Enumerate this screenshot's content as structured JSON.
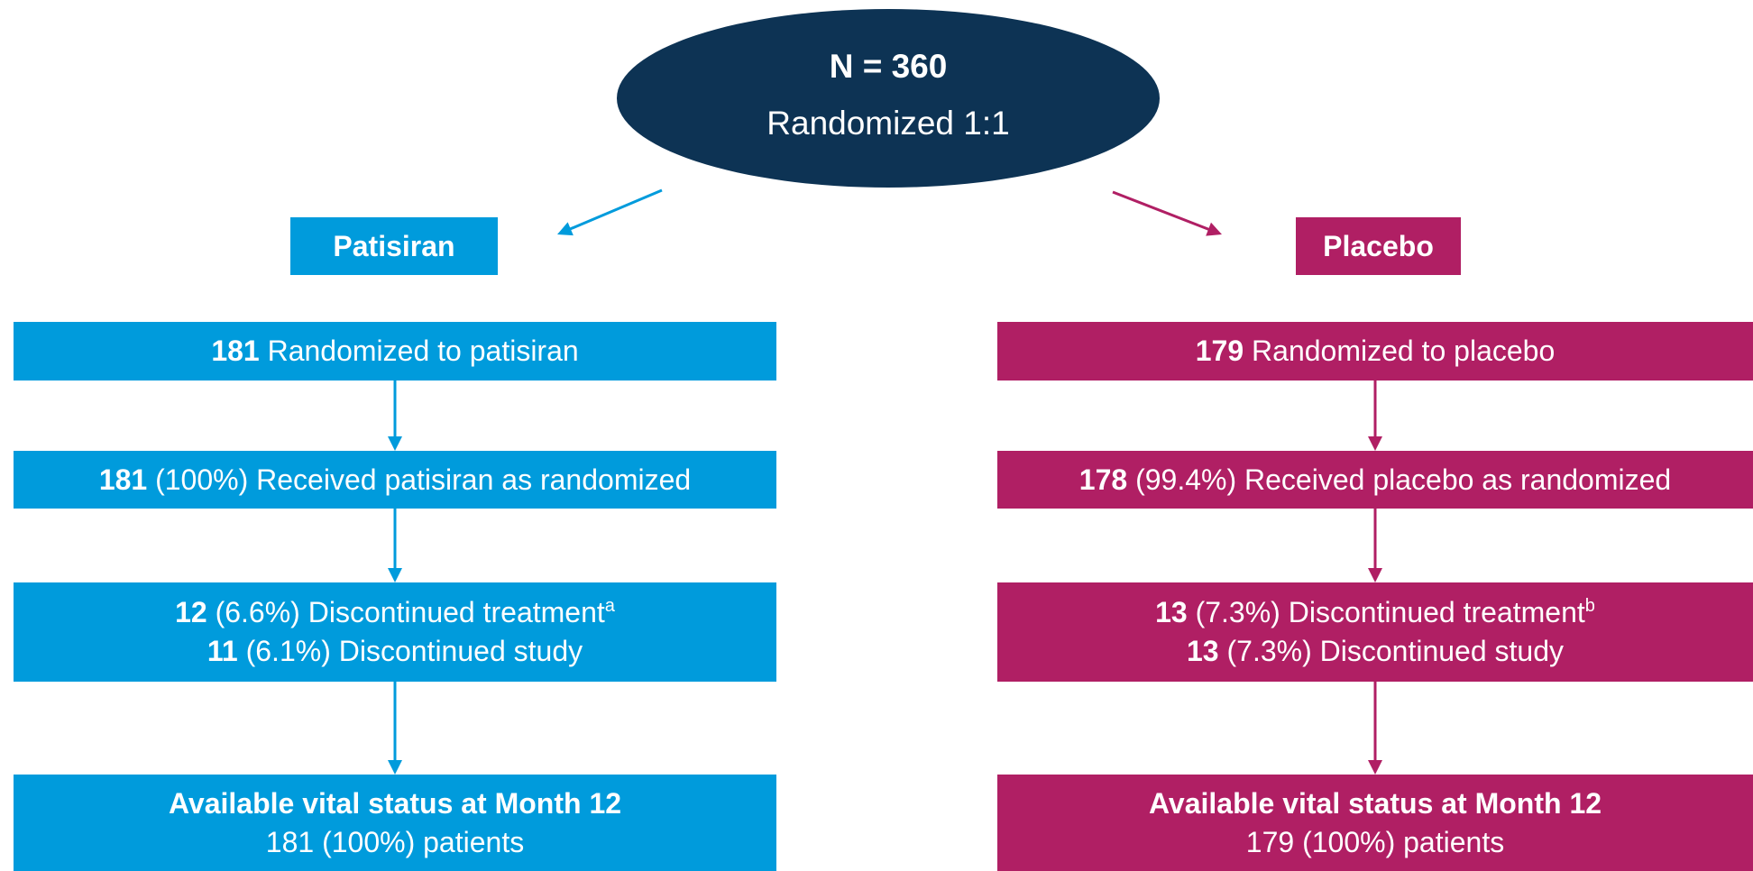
{
  "top": {
    "n": "N = 360",
    "label": "Randomized 1:1"
  },
  "arms": [
    {
      "name": "Patisiran",
      "boxes": [
        {
          "lines": [
            {
              "bold": "181",
              "text": "Randomized to patisiran"
            }
          ]
        },
        {
          "lines": [
            {
              "bold": "181",
              "text": "(100%) Received patisiran as randomized"
            }
          ]
        },
        {
          "lines": [
            {
              "bold": "12",
              "text": "(6.6%) Discontinued treatment",
              "sup": "a"
            },
            {
              "bold": "11",
              "text": "(6.1%) Discontinued study"
            }
          ]
        },
        {
          "lines": [
            {
              "bold": "Available vital status at Month 12"
            },
            {
              "text": "181 (100%) patients"
            }
          ]
        }
      ]
    },
    {
      "name": "Placebo",
      "boxes": [
        {
          "lines": [
            {
              "bold": "179",
              "text": "Randomized to placebo"
            }
          ]
        },
        {
          "lines": [
            {
              "bold": "178",
              "text": "(99.4%) Received placebo as randomized"
            }
          ]
        },
        {
          "lines": [
            {
              "bold": "13",
              "text": "(7.3%) Discontinued treatment",
              "sup": "b"
            },
            {
              "bold": "13",
              "text": "(7.3%) Discontinued study"
            }
          ]
        },
        {
          "lines": [
            {
              "bold": "Available vital status at Month 12"
            },
            {
              "text": "179 (100%) patients"
            }
          ]
        }
      ]
    }
  ]
}
